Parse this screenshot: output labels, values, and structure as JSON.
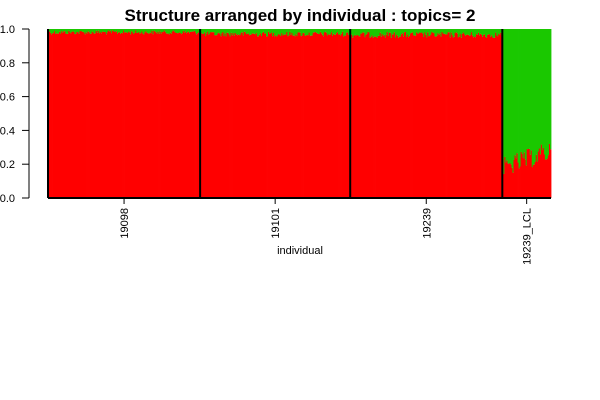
{
  "chart_data": {
    "type": "bar",
    "subtype": "stacked-structure-plot",
    "title": "Structure arranged by individual : topics= 2",
    "xlabel": "individual",
    "ylabel": "",
    "ylim": [
      0,
      1
    ],
    "yticks": [
      "0.0",
      "0.2",
      "0.4",
      "0.6",
      "0.8",
      "1.0"
    ],
    "grid": false,
    "legend": "none",
    "groups": [
      {
        "label": "19098",
        "n_samples": 150,
        "topic2_mean": 0.02,
        "topic2_spread": 0.012
      },
      {
        "label": "19101",
        "n_samples": 148,
        "topic2_mean": 0.03,
        "topic2_spread": 0.015
      },
      {
        "label": "19239",
        "n_samples": 150,
        "topic2_mean": 0.035,
        "topic2_spread": 0.018
      },
      {
        "label": "19239_LCL",
        "n_samples": 48,
        "topic2_mean": 0.75,
        "topic2_spread": 0.06
      }
    ],
    "series": [
      {
        "color": "#FF0000"
      },
      {
        "color": "#1AC800"
      }
    ]
  }
}
